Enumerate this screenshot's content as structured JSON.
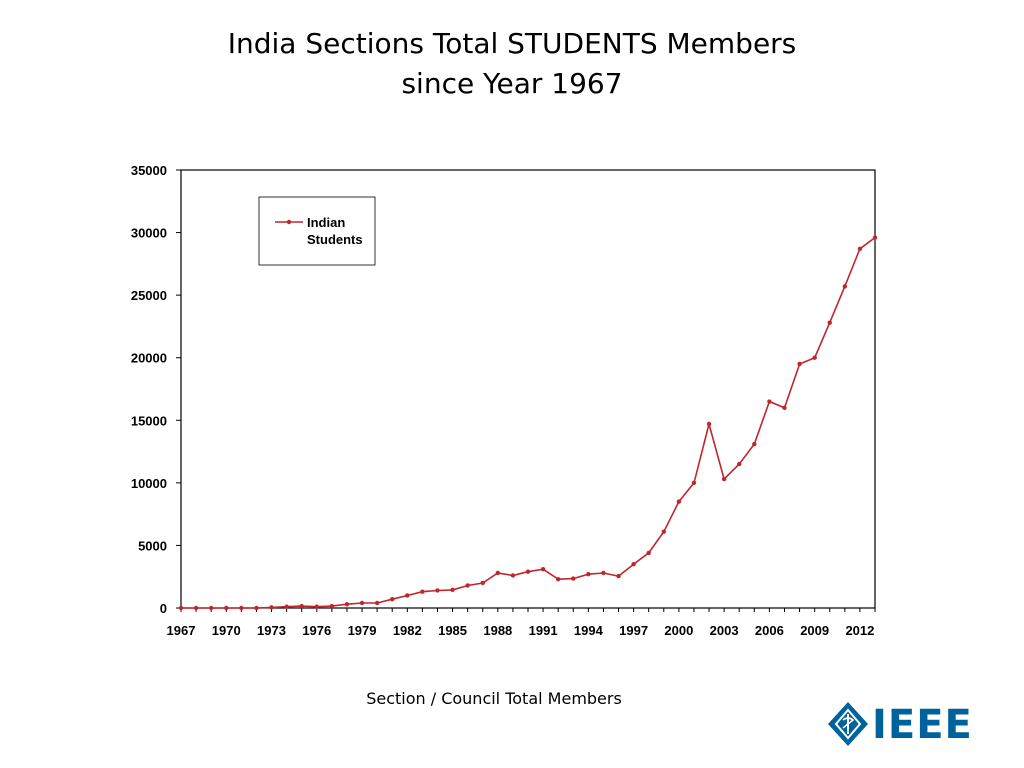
{
  "slide": {
    "title_line1": "India Sections Total STUDENTS Members",
    "title_line2": "since Year 1967",
    "caption": "Section / Council Total Members",
    "logo_text": "IEEE",
    "accent_color": "#c0272d",
    "logo_color": "#00629b"
  },
  "chart_data": {
    "type": "line",
    "title": "",
    "xlabel": "",
    "ylabel": "",
    "ylim": [
      0,
      35000
    ],
    "xlim": [
      1967,
      2013
    ],
    "y_ticks": [
      0,
      5000,
      10000,
      15000,
      20000,
      25000,
      30000,
      35000
    ],
    "x_tick_labels": [
      "1967",
      "1970",
      "1973",
      "1976",
      "1979",
      "1982",
      "1985",
      "1988",
      "1991",
      "1994",
      "1997",
      "2000",
      "2003",
      "2006",
      "2009",
      "2012"
    ],
    "grid": false,
    "legend": {
      "position": "top-left",
      "entries": [
        "Indian Students"
      ]
    },
    "x": [
      1967,
      1968,
      1969,
      1970,
      1971,
      1972,
      1973,
      1974,
      1975,
      1976,
      1977,
      1978,
      1979,
      1980,
      1981,
      1982,
      1983,
      1984,
      1985,
      1986,
      1987,
      1988,
      1989,
      1990,
      1991,
      1992,
      1993,
      1994,
      1995,
      1996,
      1997,
      1998,
      1999,
      2000,
      2001,
      2002,
      2003,
      2004,
      2005,
      2006,
      2007,
      2008,
      2009,
      2010,
      2011,
      2012,
      2013
    ],
    "series": [
      {
        "name": "Indian Students",
        "color": "#c0272d",
        "values": [
          0,
          0,
          0,
          0,
          0,
          0,
          50,
          100,
          150,
          100,
          150,
          300,
          400,
          400,
          700,
          1000,
          1300,
          1400,
          1450,
          1800,
          2000,
          2800,
          2600,
          2900,
          3100,
          2300,
          2350,
          2700,
          2800,
          2550,
          3500,
          4400,
          6100,
          8500,
          10000,
          14700,
          10300,
          11500,
          13100,
          16500,
          16000,
          19500,
          20000,
          22800,
          25700,
          28700,
          29600
        ]
      }
    ]
  }
}
